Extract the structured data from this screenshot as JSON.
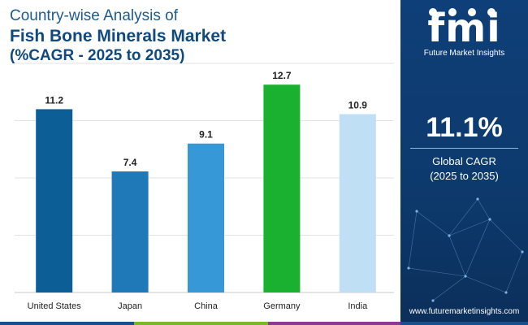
{
  "title": {
    "line1": "Country-wise Analysis of",
    "line2": "Fish Bone Minerals Market",
    "line3": "(%CAGR - 2025 to 2035)"
  },
  "chart_data": {
    "type": "bar",
    "categories": [
      "United States",
      "Japan",
      "China",
      "Germany",
      "India"
    ],
    "values": [
      11.2,
      7.4,
      9.1,
      12.7,
      10.9
    ],
    "value_labels": [
      "11.2",
      "7.4",
      "9.1",
      "12.7",
      "10.9"
    ],
    "colors": [
      "#0b5e96",
      "#1f78b8",
      "#3798d8",
      "#1ab030",
      "#bfe0f4"
    ],
    "ylim": [
      0,
      14
    ],
    "grid": true,
    "title": "",
    "xlabel": "",
    "ylabel": ""
  },
  "panel": {
    "logo_text": "fmi",
    "logo_sub": "Future Market Insights",
    "cagr_value": "11.1%",
    "cagr_label1": "Global CAGR",
    "cagr_label2": "(2025 to 2035)",
    "website": "www.futuremarketinsights.com"
  },
  "bottom_bar_colors": [
    "#1a4f8b",
    "#79b928",
    "#8b3a8f",
    "#1a4f8b"
  ]
}
